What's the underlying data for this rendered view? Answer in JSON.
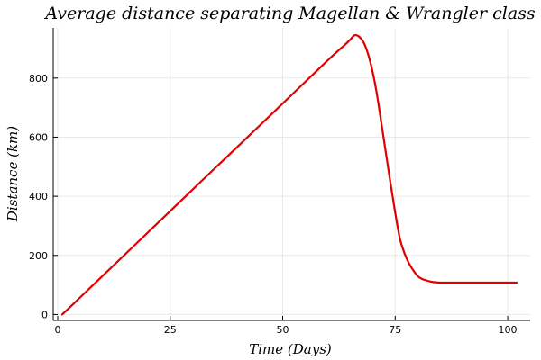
{
  "chart_data": {
    "type": "line",
    "title": "Average distance separating Magellan & Wrangler class",
    "xlabel": "Time (Days)",
    "ylabel": "Distance (km)",
    "xlim": [
      -1,
      105
    ],
    "ylim": [
      -20,
      970
    ],
    "xticks": [
      0,
      25,
      50,
      75,
      100
    ],
    "yticks": [
      0,
      200,
      400,
      600,
      800
    ],
    "grid": true,
    "legend": "none",
    "line_color": "#e00000",
    "series": [
      {
        "x": [
          1,
          5,
          10,
          15,
          20,
          25,
          30,
          35,
          40,
          45,
          50,
          55,
          60,
          62,
          64,
          65,
          66,
          67,
          68,
          69,
          70,
          71,
          72,
          73,
          74,
          75,
          76,
          77,
          78,
          79,
          80,
          81,
          82,
          83,
          84,
          85,
          86,
          87,
          88,
          90,
          95,
          100,
          102
        ],
        "y": [
          0,
          58,
          131,
          204,
          277,
          350,
          423,
          496,
          568,
          641,
          714,
          787,
          860,
          888,
          915,
          930,
          945,
          940,
          920,
          880,
          820,
          740,
          640,
          540,
          440,
          345,
          260,
          210,
          175,
          150,
          130,
          120,
          115,
          111,
          109,
          108,
          108,
          108,
          108,
          108,
          108,
          108,
          108
        ]
      }
    ]
  }
}
